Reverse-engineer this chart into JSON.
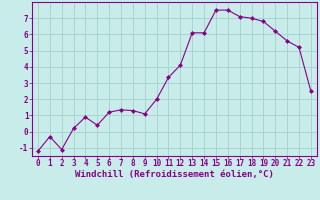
{
  "x": [
    0,
    1,
    2,
    3,
    4,
    5,
    6,
    7,
    8,
    9,
    10,
    11,
    12,
    13,
    14,
    15,
    16,
    17,
    18,
    19,
    20,
    21,
    22,
    23
  ],
  "y": [
    -1.2,
    -0.3,
    -1.1,
    0.2,
    0.9,
    0.4,
    1.2,
    1.35,
    1.3,
    1.1,
    2.0,
    3.35,
    4.1,
    6.1,
    6.1,
    7.5,
    7.5,
    7.1,
    7.0,
    6.8,
    6.2,
    5.6,
    5.2,
    2.5
  ],
  "line_color": "#880088",
  "marker": "D",
  "marker_size": 2.0,
  "bg_color": "#c8ecea",
  "grid_color": "#aad4d0",
  "xlabel": "Windchill (Refroidissement éolien,°C)",
  "xlim": [
    -0.5,
    23.5
  ],
  "ylim": [
    -1.5,
    8.0
  ],
  "yticks": [
    -1,
    0,
    1,
    2,
    3,
    4,
    5,
    6,
    7
  ],
  "xticks": [
    0,
    1,
    2,
    3,
    4,
    5,
    6,
    7,
    8,
    9,
    10,
    11,
    12,
    13,
    14,
    15,
    16,
    17,
    18,
    19,
    20,
    21,
    22,
    23
  ],
  "tick_fontsize": 5.5,
  "xlabel_fontsize": 6.5,
  "linewidth": 0.8
}
